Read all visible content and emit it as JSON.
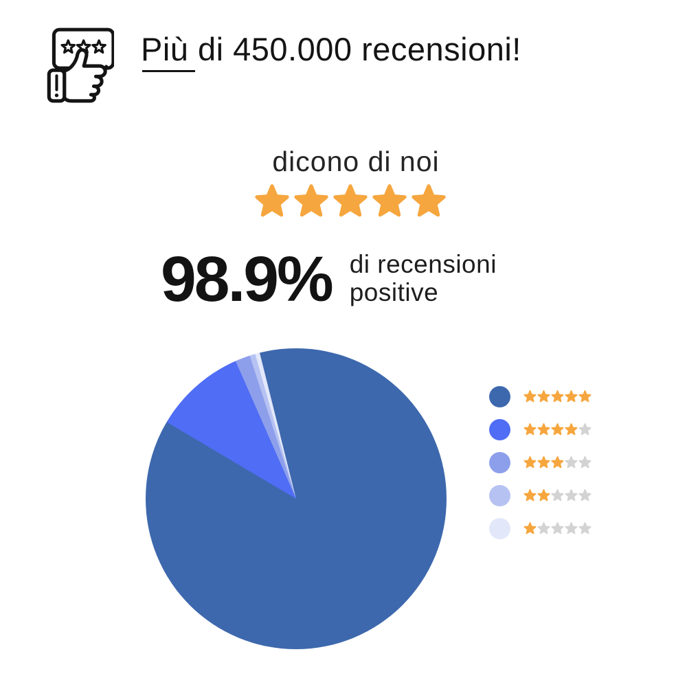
{
  "page": {
    "background": "#ffffff"
  },
  "header": {
    "icon": "review-thumbs-up-icon",
    "title": "Più di 450.000 recensioni!"
  },
  "tagline": {
    "text": "dicono di noi",
    "stars_count": 5
  },
  "stat": {
    "value": "98.9%",
    "label_line1": "di recensioni",
    "label_line2": "positive"
  },
  "colors": {
    "text": "#141414",
    "star_filled": "#F6A63E",
    "star_empty": "#D3D3D3"
  },
  "chart_data": {
    "type": "pie",
    "title": "",
    "description": "Distribution of customer reviews by star rating",
    "start_angle_deg": -14,
    "legend_position": "right",
    "legend_star_colors": {
      "filled": "#F6A63E",
      "empty": "#D3D3D3"
    },
    "slices": [
      {
        "rating_stars": 5,
        "value_pct": 87.4,
        "color": "#3D68AD"
      },
      {
        "rating_stars": 4,
        "value_pct": 9.9,
        "color": "#4F6DF5"
      },
      {
        "rating_stars": 3,
        "value_pct": 1.6,
        "color": "#8D9FEB"
      },
      {
        "rating_stars": 2,
        "value_pct": 0.6,
        "color": "#B5C2F2"
      },
      {
        "rating_stars": 1,
        "value_pct": 0.5,
        "color": "#E2E8FA"
      }
    ]
  }
}
